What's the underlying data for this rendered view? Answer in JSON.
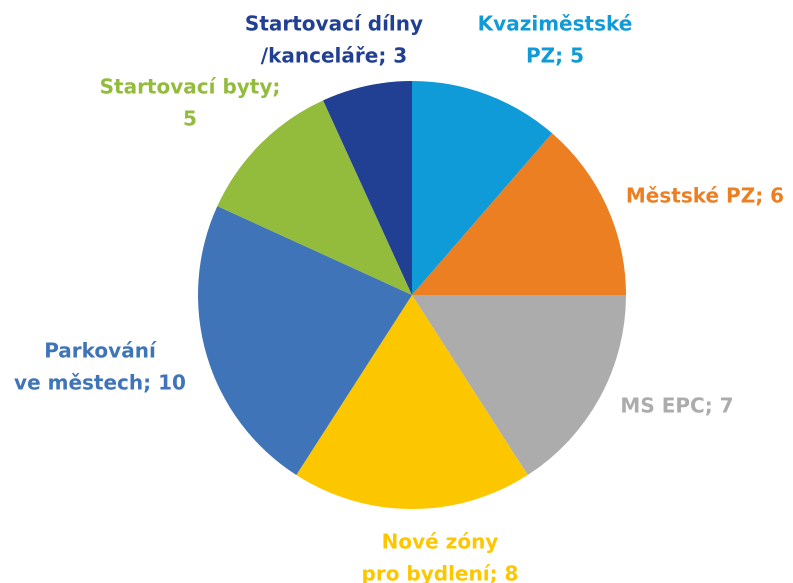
{
  "chart_data": {
    "type": "pie",
    "value_labels": [
      [
        "Kvaziměstské",
        "PZ; 5"
      ],
      [
        "Městské PZ; 6"
      ],
      [
        "MS EPC; 7"
      ],
      [
        "Nové zóny",
        "pro bydlení; 8"
      ],
      [
        "Parkování",
        "ve městech; 10"
      ],
      [
        "Startovací byty;",
        "5"
      ],
      [
        "Startovací dílny",
        "/kanceláře; 3"
      ]
    ],
    "values": [
      5,
      6,
      7,
      8,
      10,
      5,
      3
    ],
    "colors": [
      "#0f9ad8",
      "#ec7f22",
      "#acacac",
      "#fdc700",
      "#3f74b8",
      "#93bb3c",
      "#213f93"
    ]
  }
}
